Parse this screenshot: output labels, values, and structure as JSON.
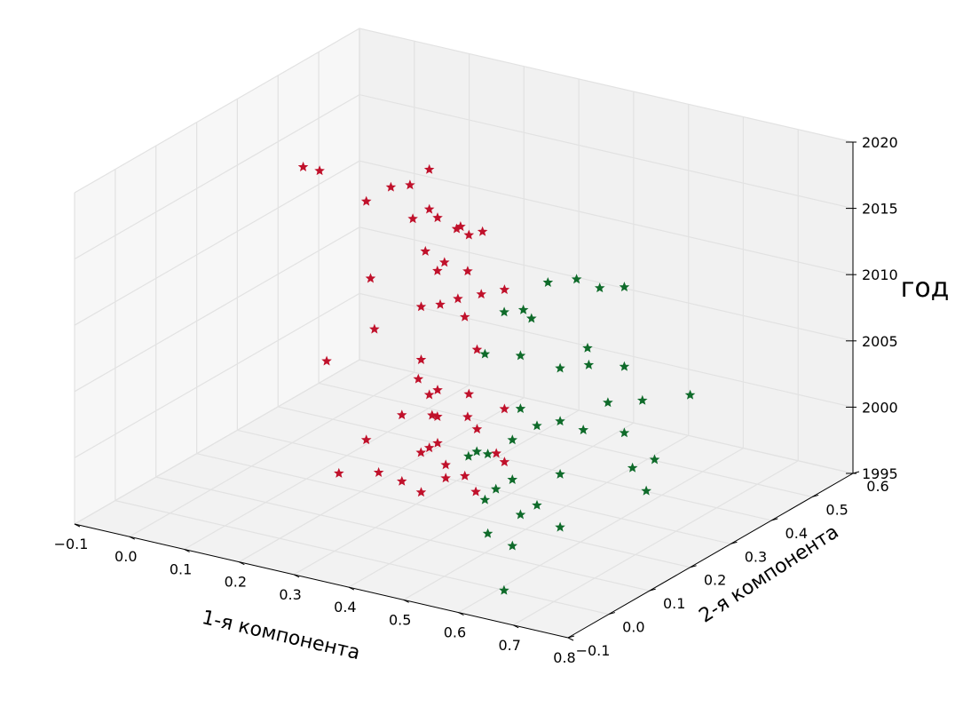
{
  "chart_data": {
    "type": "scatter",
    "x_axis": {
      "label": "1-я компонента",
      "ticks": [
        -0.1,
        0.0,
        0.1,
        0.2,
        0.3,
        0.4,
        0.5,
        0.6,
        0.7,
        0.8
      ],
      "tick_labels": [
        "−0.1",
        "0.0",
        "0.1",
        "0.2",
        "0.3",
        "0.4",
        "0.5",
        "0.6",
        "0.7",
        "0.8"
      ],
      "range": [
        -0.1,
        0.8
      ]
    },
    "y_axis": {
      "label": "2-я компонента",
      "ticks": [
        -0.1,
        0.0,
        0.1,
        0.2,
        0.3,
        0.4,
        0.5,
        0.6
      ],
      "tick_labels": [
        "−0.1",
        "0.0",
        "0.1",
        "0.2",
        "0.3",
        "0.4",
        "0.5",
        "0.6"
      ],
      "range": [
        -0.1,
        0.6
      ]
    },
    "z_axis": {
      "label": "год",
      "ticks": [
        1995,
        2000,
        2005,
        2010,
        2015,
        2020
      ],
      "tick_labels": [
        "1995",
        "2000",
        "2005",
        "2010",
        "2015",
        "2020"
      ],
      "range": [
        1995,
        2020
      ]
    },
    "grid": true,
    "marker": "star",
    "series": [
      {
        "color": "#c0112b",
        "points": [
          [
            0.25,
            0.3,
            2018
          ],
          [
            0.02,
            0.3,
            2016
          ],
          [
            0.05,
            0.3,
            2016
          ],
          [
            0.18,
            0.3,
            2016
          ],
          [
            0.2,
            0.32,
            2016
          ],
          [
            0.15,
            0.28,
            2015
          ],
          [
            0.25,
            0.3,
            2015
          ],
          [
            0.28,
            0.28,
            2015
          ],
          [
            0.3,
            0.3,
            2014
          ],
          [
            0.22,
            0.3,
            2014
          ],
          [
            0.27,
            0.35,
            2013
          ],
          [
            0.3,
            0.33,
            2013
          ],
          [
            0.31,
            0.35,
            2013
          ],
          [
            0.28,
            0.25,
            2013
          ],
          [
            0.3,
            0.27,
            2012
          ],
          [
            0.32,
            0.3,
            2011
          ],
          [
            0.18,
            0.25,
            2010
          ],
          [
            0.25,
            0.32,
            2010
          ],
          [
            0.33,
            0.32,
            2009
          ],
          [
            0.35,
            0.35,
            2009
          ],
          [
            0.25,
            0.28,
            2008
          ],
          [
            0.27,
            0.3,
            2008
          ],
          [
            0.28,
            0.33,
            2008
          ],
          [
            0.3,
            0.32,
            2007
          ],
          [
            0.15,
            0.3,
            2005
          ],
          [
            0.25,
            0.28,
            2004
          ],
          [
            0.3,
            0.35,
            2004
          ],
          [
            0.1,
            0.25,
            2003
          ],
          [
            0.23,
            0.3,
            2002
          ],
          [
            0.28,
            0.28,
            2002
          ],
          [
            0.25,
            0.3,
            2001
          ],
          [
            0.3,
            0.33,
            2001
          ],
          [
            0.32,
            0.3,
            2000
          ],
          [
            0.35,
            0.35,
            2000
          ],
          [
            0.27,
            0.28,
            2000
          ],
          [
            0.2,
            0.3,
            1999
          ],
          [
            0.25,
            0.32,
            1999
          ],
          [
            0.28,
            0.28,
            1998
          ],
          [
            0.3,
            0.35,
            1998
          ],
          [
            0.15,
            0.28,
            1997
          ],
          [
            0.25,
            0.3,
            1997
          ],
          [
            0.35,
            0.33,
            1997
          ],
          [
            0.22,
            0.32,
            1996
          ],
          [
            0.28,
            0.3,
            1996
          ],
          [
            0.18,
            0.27,
            1995
          ],
          [
            0.28,
            0.3,
            1995
          ],
          [
            0.3,
            0.32,
            1995
          ],
          [
            0.35,
            0.35,
            1996
          ],
          [
            0.1,
            0.28,
            1994
          ],
          [
            0.25,
            0.28,
            1994
          ],
          [
            0.32,
            0.32,
            1994
          ],
          [
            0.2,
            0.3,
            1994
          ]
        ]
      },
      {
        "color": "#0f6b2a",
        "points": [
          [
            0.6,
            0.12,
            2016
          ],
          [
            0.63,
            0.15,
            2016
          ],
          [
            0.68,
            0.2,
            2015
          ],
          [
            0.65,
            0.18,
            2015
          ],
          [
            0.57,
            0.1,
            2014
          ],
          [
            0.55,
            0.08,
            2014
          ],
          [
            0.57,
            0.12,
            2013
          ],
          [
            0.65,
            0.15,
            2011
          ],
          [
            0.5,
            0.1,
            2010
          ],
          [
            0.55,
            0.12,
            2010
          ],
          [
            0.6,
            0.15,
            2009
          ],
          [
            0.63,
            0.18,
            2009
          ],
          [
            0.68,
            0.2,
            2009
          ],
          [
            0.75,
            0.15,
            2008
          ],
          [
            0.8,
            0.2,
            2008
          ],
          [
            0.55,
            0.12,
            2006
          ],
          [
            0.65,
            0.2,
            2006
          ],
          [
            0.6,
            0.15,
            2005
          ],
          [
            0.58,
            0.12,
            2005
          ],
          [
            0.55,
            0.1,
            2004
          ],
          [
            0.62,
            0.18,
            2004
          ],
          [
            0.68,
            0.2,
            2004
          ],
          [
            0.5,
            0.08,
            2003
          ],
          [
            0.52,
            0.08,
            2003
          ],
          [
            0.75,
            0.18,
            2003
          ],
          [
            0.47,
            0.1,
            2002
          ],
          [
            0.55,
            0.1,
            2001
          ],
          [
            0.6,
            0.15,
            2001
          ],
          [
            0.68,
            0.22,
            2001
          ],
          [
            0.72,
            0.2,
            2000
          ],
          [
            0.52,
            0.1,
            2000
          ],
          [
            0.58,
            0.12,
            1999
          ],
          [
            0.5,
            0.1,
            1999
          ],
          [
            0.55,
            0.12,
            1998
          ],
          [
            0.6,
            0.15,
            1997
          ],
          [
            0.52,
            0.08,
            1997
          ],
          [
            0.55,
            0.1,
            1996
          ],
          [
            0.52,
            0.12,
            1992
          ]
        ]
      }
    ]
  }
}
